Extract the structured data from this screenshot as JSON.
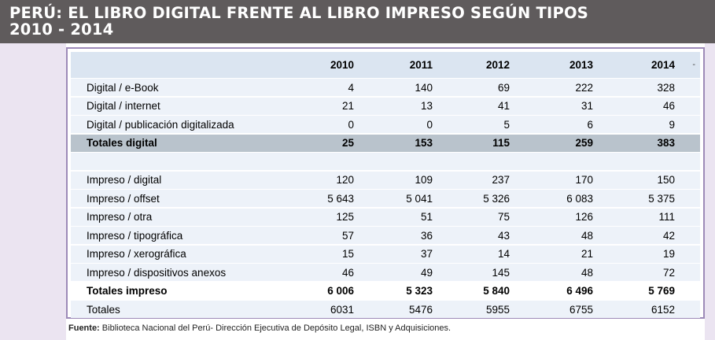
{
  "title": {
    "line1": "PERÚ: EL LIBRO DIGITAL FRENTE AL LIBRO IMPRESO SEGÚN TIPOS",
    "line2": "2010 - 2014"
  },
  "table": {
    "years": [
      "2010",
      "2011",
      "2012",
      "2013",
      "2014"
    ],
    "header_mark": "-",
    "digital": [
      {
        "label": "Digital / e-Book",
        "values": [
          "4",
          "140",
          "69",
          "222",
          "328"
        ]
      },
      {
        "label": "Digital / internet",
        "values": [
          "21",
          "13",
          "41",
          "31",
          "46"
        ]
      },
      {
        "label": "Digital / publicación digitalizada",
        "values": [
          "0",
          "0",
          "5",
          "6",
          "9"
        ]
      }
    ],
    "digital_total": {
      "label": "Totales digital",
      "values": [
        "25",
        "153",
        "115",
        "259",
        "383"
      ]
    },
    "impreso": [
      {
        "label": "Impreso / digital",
        "values": [
          "120",
          "109",
          "237",
          "170",
          "150"
        ]
      },
      {
        "label": "Impreso /  offset",
        "values": [
          "5 643",
          "5 041",
          "5 326",
          "6 083",
          "5 375"
        ]
      },
      {
        "label": "Impreso /   otra",
        "values": [
          "125",
          "51",
          "75",
          "126",
          "111"
        ]
      },
      {
        "label": "Impreso / tipográfica",
        "values": [
          "57",
          "36",
          "43",
          "48",
          "42"
        ]
      },
      {
        "label": "Impreso / xerográfica",
        "values": [
          "15",
          "37",
          "14",
          "21",
          "19"
        ]
      },
      {
        "label": "Impreso / dispositivos anexos",
        "values": [
          "46",
          "49",
          "145",
          "48",
          "72"
        ]
      }
    ],
    "impreso_total": {
      "label": "Totales impreso",
      "values": [
        "6 006",
        "5 323",
        "5 840",
        "6 496",
        "5 769"
      ]
    },
    "grand_total": {
      "label": "Totales",
      "values": [
        "6031",
        "5476",
        "5955",
        "6755",
        "6152"
      ]
    }
  },
  "footer": {
    "source_label": "Fuente:",
    "source_text": " Biblioteca Nacional del Perú- Dirección Ejecutiva de Depósito Legal, ISBN y Adquisiciones."
  }
}
